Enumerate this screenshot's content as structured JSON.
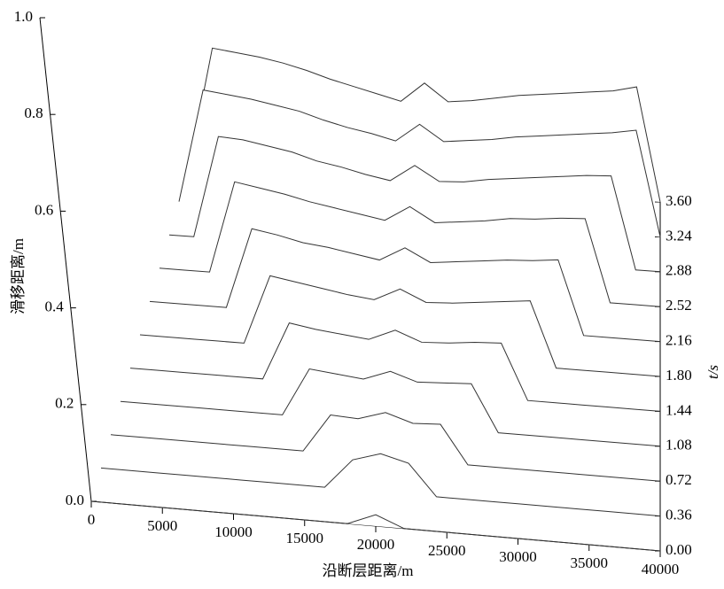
{
  "chart_data": {
    "type": "waterfall3d",
    "xlabel": "沿断层距离/m",
    "ylabel": "滑移距离/m",
    "zlabel": "t/s",
    "x": [
      0,
      2000,
      4000,
      6000,
      8000,
      10000,
      12000,
      14000,
      16000,
      18000,
      20000,
      22000,
      24000,
      26000,
      28000,
      30000,
      32000,
      34000,
      36000,
      38000,
      40000
    ],
    "xlim": [
      0,
      40000
    ],
    "xticks": [
      0,
      5000,
      10000,
      15000,
      20000,
      25000,
      30000,
      35000,
      40000
    ],
    "ylim": [
      0,
      1
    ],
    "yticks": [
      {
        "value": 0,
        "label": "0.0"
      },
      0.2,
      0.4,
      0.6,
      0.8,
      {
        "value": 1,
        "label": "1.0"
      }
    ],
    "zlim": [
      0,
      3.6
    ],
    "zticks": [
      {
        "value": 0,
        "label": "0.00"
      },
      0.36,
      0.72,
      1.08,
      1.44,
      {
        "value": 1.8,
        "label": "1.80"
      },
      2.16,
      2.52,
      2.88,
      3.24,
      {
        "value": 3.6,
        "label": "3.60"
      }
    ],
    "color": "#333333",
    "series": [
      {
        "values": [
          0,
          0,
          0,
          0,
          0,
          0,
          0,
          0,
          0,
          0,
          0.08,
          0,
          0,
          0,
          0,
          0,
          0,
          0,
          0,
          0,
          0
        ]
      },
      {
        "values": [
          0,
          0,
          0,
          0,
          0,
          0,
          0,
          0,
          0,
          0.21,
          0.27,
          0.22,
          0,
          0,
          0,
          0,
          0,
          0,
          0,
          0,
          0
        ]
      },
      {
        "values": [
          0,
          0,
          0,
          0,
          0,
          0,
          0,
          0,
          0.27,
          0.26,
          0.32,
          0.26,
          0.27,
          0,
          0,
          0,
          0,
          0,
          0,
          0,
          0
        ]
      },
      {
        "values": [
          0,
          0,
          0,
          0,
          0,
          0,
          0,
          0.34,
          0.32,
          0.3,
          0.37,
          0.31,
          0.32,
          0.33,
          0,
          0,
          0,
          0,
          0,
          0,
          0
        ]
      },
      {
        "values": [
          0,
          0,
          0,
          0,
          0,
          0,
          0.41,
          0.38,
          0.36,
          0.34,
          0.42,
          0.35,
          0.36,
          0.38,
          0.39,
          0,
          0,
          0,
          0,
          0,
          0
        ]
      },
      {
        "values": [
          0,
          0,
          0,
          0,
          0,
          0.49,
          0.46,
          0.43,
          0.4,
          0.38,
          0.47,
          0.39,
          0.4,
          0.42,
          0.44,
          0.46,
          0,
          0,
          0,
          0,
          0
        ]
      },
      {
        "values": [
          0,
          0,
          0,
          0,
          0.57,
          0.54,
          0.5,
          0.48,
          0.45,
          0.42,
          0.52,
          0.43,
          0.45,
          0.47,
          0.49,
          0.5,
          0.52,
          0,
          0,
          0,
          0
        ]
      },
      {
        "values": [
          0,
          0,
          0,
          0.65,
          0.62,
          0.59,
          0.55,
          0.52,
          0.49,
          0.46,
          0.57,
          0.47,
          0.49,
          0.51,
          0.54,
          0.55,
          0.57,
          0.58,
          0,
          0,
          0
        ]
      },
      {
        "values": [
          0,
          0,
          0.72,
          0.71,
          0.68,
          0.65,
          0.6,
          0.57,
          0.53,
          0.5,
          0.62,
          0.52,
          0.53,
          0.56,
          0.58,
          0.6,
          0.62,
          0.64,
          0.65,
          0,
          0
        ]
      },
      {
        "values": [
          0,
          0.8,
          0.78,
          0.76,
          0.73,
          0.7,
          0.65,
          0.61,
          0.58,
          0.54,
          0.67,
          0.56,
          0.58,
          0.6,
          0.63,
          0.65,
          0.67,
          0.69,
          0.71,
          0.74,
          0
        ]
      },
      {
        "values": [
          0,
          0.86,
          0.84,
          0.82,
          0.79,
          0.75,
          0.7,
          0.66,
          0.62,
          0.58,
          0.72,
          0.6,
          0.62,
          0.65,
          0.68,
          0.7,
          0.72,
          0.74,
          0.76,
          0.8,
          0
        ]
      }
    ]
  }
}
